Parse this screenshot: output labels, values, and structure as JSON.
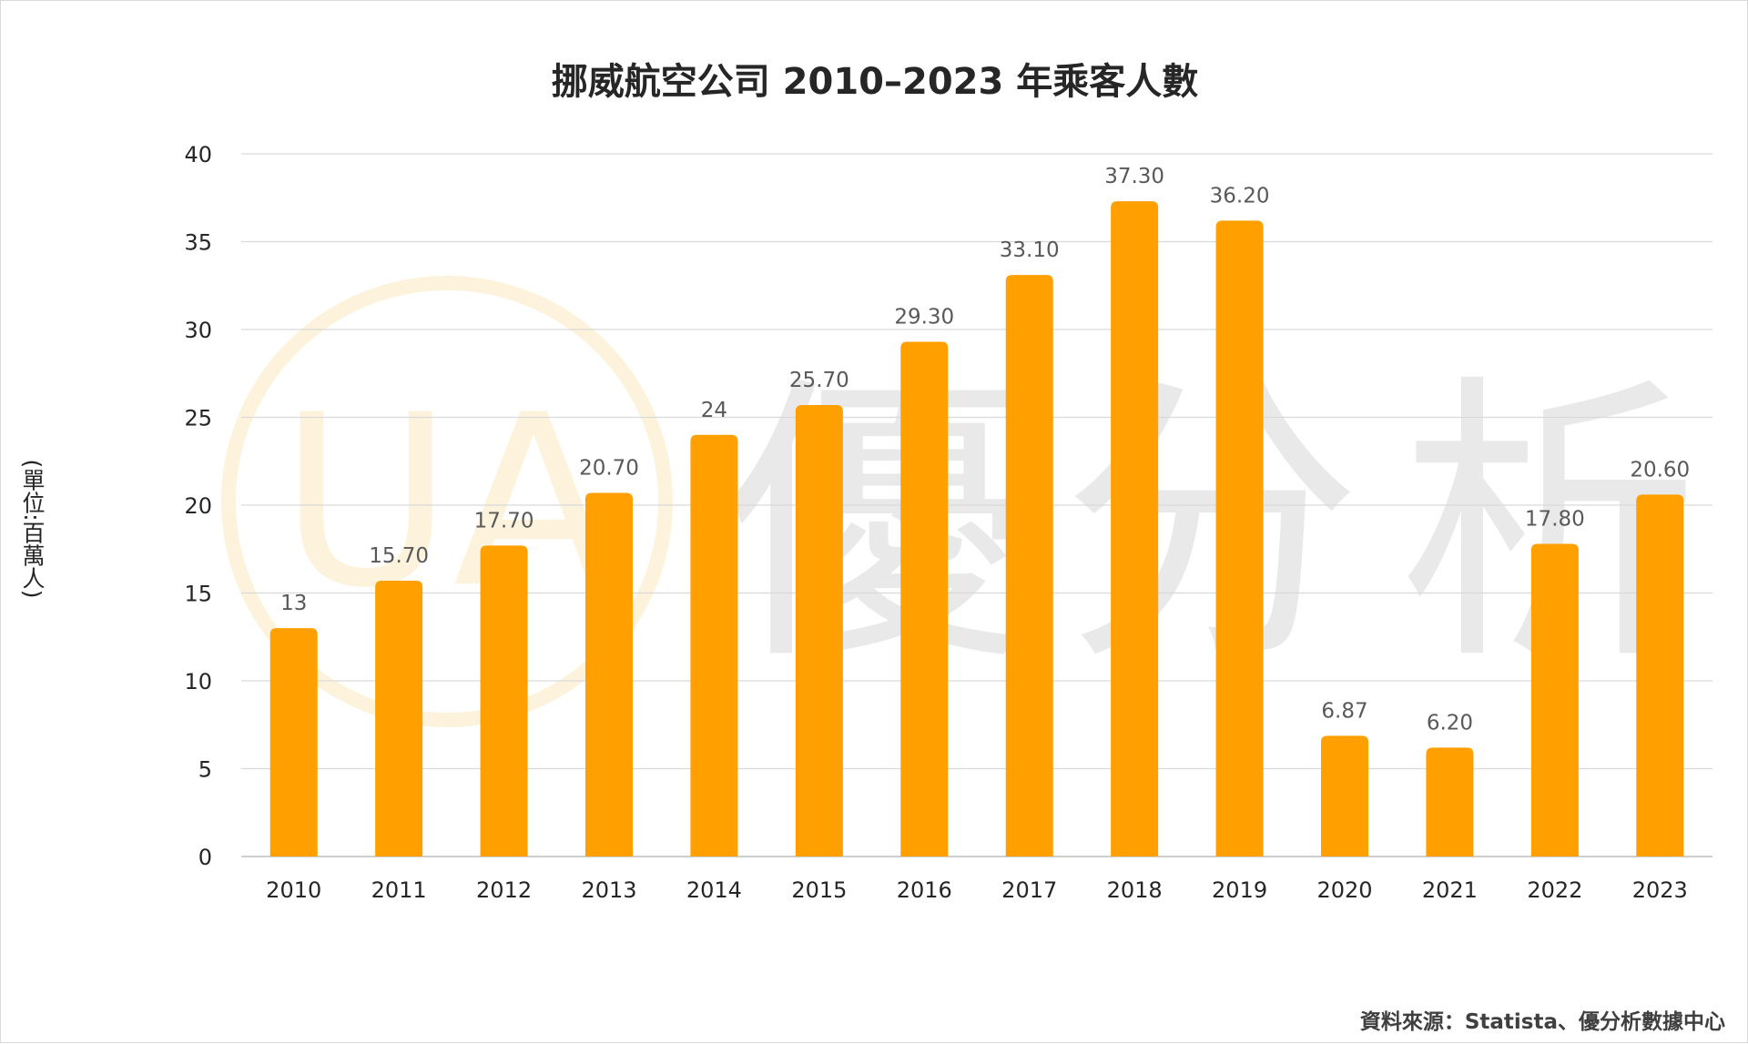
{
  "chart_data": {
    "type": "bar",
    "title": "挪威航空公司 2010–2023 年乘客人數",
    "ylabel": "(單位:百萬人)",
    "xlabel": "",
    "categories": [
      "2010",
      "2011",
      "2012",
      "2013",
      "2014",
      "2015",
      "2016",
      "2017",
      "2018",
      "2019",
      "2020",
      "2021",
      "2022",
      "2023"
    ],
    "values": [
      13,
      15.7,
      17.7,
      20.7,
      24,
      25.7,
      29.3,
      33.1,
      37.3,
      36.2,
      6.87,
      6.2,
      17.8,
      20.6
    ],
    "data_labels": [
      "13",
      "15.70",
      "17.70",
      "20.70",
      "24",
      "25.70",
      "29.30",
      "33.10",
      "37.30",
      "36.20",
      "6.87",
      "6.20",
      "17.80",
      "20.60"
    ],
    "ylim": [
      0,
      40
    ],
    "yticks": [
      0,
      5,
      10,
      15,
      20,
      25,
      30,
      35,
      40
    ],
    "grid": true,
    "legend": "none",
    "bar_color": "#FF9F00"
  },
  "source_note": "資料來源：Statista、優分析數據中心",
  "watermark": {
    "logo_letters": "UA",
    "text": "優分析",
    "color": "#e9e9e9",
    "ring_color": "#fdf3dc"
  }
}
